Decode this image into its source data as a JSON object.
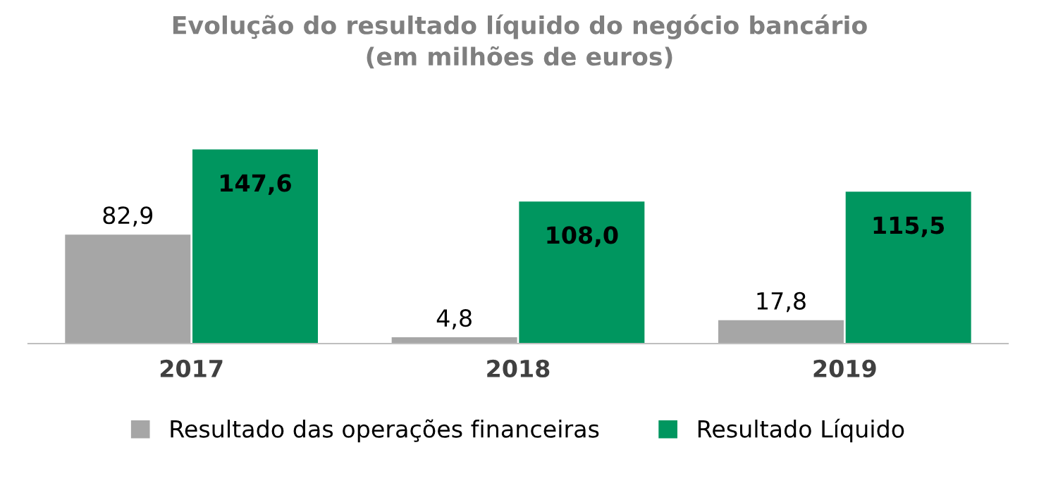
{
  "chart_data": {
    "type": "bar",
    "title": "Evolução do resultado líquido do negócio bancário\n(em milhões de euros)",
    "categories": [
      "2017",
      "2018",
      "2019"
    ],
    "series": [
      {
        "name": "Resultado das operações financeiras",
        "color": "#a6a6a6",
        "values": [
          82.9,
          4.8,
          17.8
        ],
        "value_labels": [
          "82,9",
          "4,8",
          "17,8"
        ]
      },
      {
        "name": "Resultado Líquido",
        "color": "#00965f",
        "values": [
          147.6,
          108.0,
          115.5
        ],
        "value_labels": [
          "147,6",
          "108,0",
          "115,5"
        ]
      }
    ],
    "tick_labels": "x",
    "grid": false,
    "legend": "bottom"
  }
}
